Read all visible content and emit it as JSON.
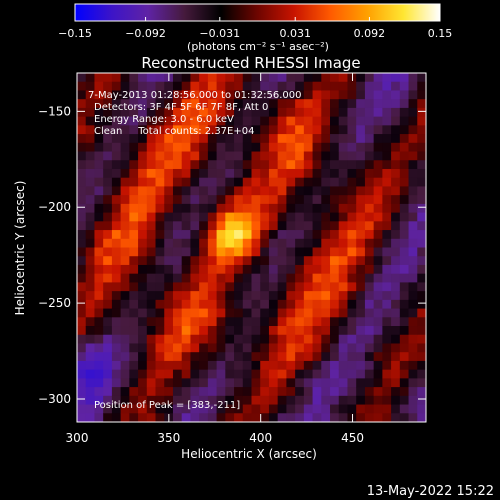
{
  "chart_data": {
    "type": "heatmap",
    "title": "Reconstructed RHESSI Image",
    "xlabel": "Heliocentric X (arcsec)",
    "ylabel": "Heliocentric Y (arcsec)",
    "xlim": [
      300,
      490
    ],
    "ylim": [
      -312,
      -130
    ],
    "x_ticks": [
      300,
      350,
      400,
      450
    ],
    "y_ticks": [
      -150,
      -200,
      -250,
      -300
    ],
    "colorbar": {
      "range": [
        -0.15,
        0.15
      ],
      "tick_labels": [
        "-0.15",
        "-0.092",
        "-0.031",
        "0.031",
        "0.092",
        "0.15"
      ],
      "units": "(photons cm⁻² s⁻¹ asec⁻²)",
      "colors": [
        "#0000ff",
        "#3c14c8",
        "#5f23a5",
        "#451a3c",
        "#000000",
        "#6e0500",
        "#c81400",
        "#ff5a00",
        "#ffa000",
        "#ffe632",
        "#ffffff"
      ]
    },
    "annotations": [
      "7-May-2013 01:28:56.000 to 01:32:56.000",
      "Detectors: 3F 4F 5F 6F 7F 8F, Att 0",
      "Energy Range: 3.0 - 6.0 keV",
      "Clean     Total counts: 2.37E+04"
    ],
    "peak_label": "Position of Peak = [383,-211]",
    "peak": [
      383,
      -211
    ],
    "grid": false,
    "date_stamp": "13-May-2022 15:22"
  }
}
